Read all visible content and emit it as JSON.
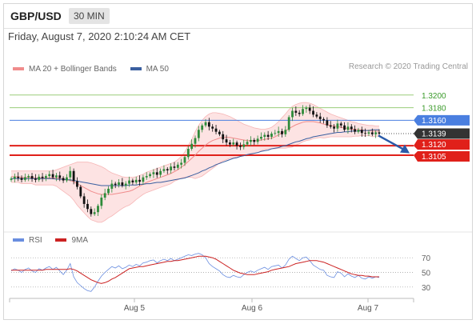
{
  "header": {
    "symbol": "GBP/USD",
    "timeframe": "30 MIN"
  },
  "datetime": "Friday, August 7, 2020 2:10:24 AM CET",
  "copyright": "Research © 2020 Trading Central",
  "colors": {
    "up": "#2e8b3a",
    "down": "#111111",
    "ma20": "#f08c8c",
    "band_fill": "#fde3e3",
    "ma50": "#3a5fa0",
    "rsi": "#6a8ee0",
    "rsi_ma": "#cc2222",
    "resistance": "#9acd7a",
    "pivot": "#4a7fe0",
    "support": "#e0201a",
    "last": "#333333",
    "arrow": "#2a5aa8"
  },
  "chart_data": [
    {
      "type": "candlestick",
      "title": "",
      "legend": [
        {
          "name": "MA 20 + Bollinger Bands",
          "color": "#f08c8c"
        },
        {
          "name": "MA 50",
          "color": "#3a5fa0"
        }
      ],
      "legend_position": "top-left",
      "x_ticks": [
        "Aug 5",
        "Aug 6",
        "Aug 7"
      ],
      "ylim": [
        1.299,
        1.323
      ],
      "last_price": 1.3139,
      "levels": [
        {
          "value": 1.32,
          "label": "1.3200",
          "kind": "resistance"
        },
        {
          "value": 1.318,
          "label": "1.3180",
          "kind": "resistance"
        },
        {
          "value": 1.316,
          "label": "1.3160",
          "kind": "pivot"
        },
        {
          "value": 1.3139,
          "label": "1.3139",
          "kind": "last"
        },
        {
          "value": 1.312,
          "label": "1.3120",
          "kind": "support"
        },
        {
          "value": 1.3105,
          "label": "1.3105",
          "kind": "support"
        }
      ],
      "forecast_arrow": {
        "from": 1.3136,
        "to": 1.3108
      },
      "close": [
        1.3068,
        1.3071,
        1.3069,
        1.3066,
        1.307,
        1.3072,
        1.3068,
        1.3066,
        1.3071,
        1.3069,
        1.3072,
        1.3075,
        1.307,
        1.3073,
        1.3069,
        1.3065,
        1.307,
        1.308,
        1.3064,
        1.3055,
        1.304,
        1.3028,
        1.302,
        1.3012,
        1.3015,
        1.3025,
        1.3038,
        1.3045,
        1.3052,
        1.306,
        1.3058,
        1.3062,
        1.3057,
        1.306,
        1.3065,
        1.3062,
        1.3066,
        1.3063,
        1.307,
        1.3072,
        1.3075,
        1.3078,
        1.3074,
        1.308,
        1.3083,
        1.3081,
        1.3087,
        1.3085,
        1.309,
        1.3093,
        1.3102,
        1.3115,
        1.3123,
        1.3132,
        1.3145,
        1.3152,
        1.3157,
        1.315,
        1.3147,
        1.3142,
        1.3138,
        1.313,
        1.3125,
        1.3122,
        1.3125,
        1.312,
        1.3118,
        1.3122,
        1.3126,
        1.3129,
        1.3126,
        1.3131,
        1.3134,
        1.3137,
        1.3134,
        1.3139,
        1.314,
        1.3143,
        1.3138,
        1.3145,
        1.3165,
        1.3175,
        1.3172,
        1.317,
        1.3178,
        1.318,
        1.3175,
        1.3169,
        1.3166,
        1.3162,
        1.316,
        1.3152,
        1.315,
        1.3147,
        1.3155,
        1.3152,
        1.3145,
        1.315,
        1.3146,
        1.3142,
        1.3145,
        1.314,
        1.3139,
        1.3141,
        1.3138,
        1.3141,
        1.3139
      ],
      "ma20": [
        1.3071,
        1.3071,
        1.3071,
        1.307,
        1.307,
        1.307,
        1.307,
        1.3069,
        1.3069,
        1.3069,
        1.3069,
        1.3069,
        1.3069,
        1.3069,
        1.3068,
        1.3067,
        1.3066,
        1.3065,
        1.3063,
        1.306,
        1.3057,
        1.3054,
        1.3051,
        1.3048,
        1.3046,
        1.3044,
        1.3043,
        1.3043,
        1.3043,
        1.3043,
        1.3044,
        1.3045,
        1.3046,
        1.3047,
        1.3048,
        1.305,
        1.3053,
        1.3056,
        1.3059,
        1.3062,
        1.3064,
        1.3066,
        1.3068,
        1.307,
        1.3072,
        1.3074,
        1.3076,
        1.3079,
        1.3082,
        1.3086,
        1.309,
        1.3095,
        1.31,
        1.3105,
        1.3111,
        1.3116,
        1.3121,
        1.3125,
        1.3128,
        1.313,
        1.3132,
        1.3133,
        1.3133,
        1.3133,
        1.3132,
        1.3131,
        1.313,
        1.3129,
        1.3128,
        1.3128,
        1.3128,
        1.3128,
        1.3129,
        1.313,
        1.3131,
        1.3132,
        1.3134,
        1.3137,
        1.314,
        1.3143,
        1.3147,
        1.315,
        1.3153,
        1.3155,
        1.3157,
        1.3158,
        1.3158,
        1.3158,
        1.3157,
        1.3156,
        1.3154,
        1.3153,
        1.3152,
        1.3151,
        1.315,
        1.3149,
        1.3148,
        1.3147,
        1.3146,
        1.3146,
        1.3145,
        1.3145,
        1.3144,
        1.3144,
        1.3143,
        1.3143,
        1.3143
      ],
      "bb_upper": [
        1.308,
        1.308,
        1.308,
        1.308,
        1.308,
        1.308,
        1.308,
        1.308,
        1.308,
        1.308,
        1.308,
        1.308,
        1.308,
        1.3082,
        1.3084,
        1.3086,
        1.3088,
        1.309,
        1.3092,
        1.3094,
        1.3094,
        1.3094,
        1.3094,
        1.3093,
        1.3091,
        1.3089,
        1.3087,
        1.3084,
        1.308,
        1.3077,
        1.3075,
        1.3073,
        1.3071,
        1.307,
        1.307,
        1.307,
        1.3071,
        1.3073,
        1.3075,
        1.3078,
        1.308,
        1.3082,
        1.3084,
        1.3086,
        1.3088,
        1.309,
        1.3092,
        1.3094,
        1.3098,
        1.3103,
        1.311,
        1.312,
        1.313,
        1.3142,
        1.3152,
        1.316,
        1.3166,
        1.317,
        1.3172,
        1.3172,
        1.3171,
        1.317,
        1.3168,
        1.3166,
        1.3163,
        1.316,
        1.3157,
        1.3154,
        1.3152,
        1.315,
        1.3148,
        1.3147,
        1.3146,
        1.3146,
        1.3147,
        1.3149,
        1.3153,
        1.3158,
        1.3164,
        1.317,
        1.3177,
        1.3182,
        1.3185,
        1.3187,
        1.3188,
        1.3188,
        1.3187,
        1.3185,
        1.3182,
        1.3179,
        1.3176,
        1.3173,
        1.317,
        1.3168,
        1.3166,
        1.3164,
        1.3162,
        1.316,
        1.3158,
        1.3157,
        1.3155,
        1.3154,
        1.3153,
        1.3152,
        1.3152,
        1.3151,
        1.3151
      ],
      "bb_lower": [
        1.3062,
        1.3062,
        1.3062,
        1.306,
        1.306,
        1.306,
        1.306,
        1.3058,
        1.3058,
        1.3058,
        1.3058,
        1.3058,
        1.3058,
        1.3056,
        1.3052,
        1.3048,
        1.3044,
        1.304,
        1.3034,
        1.3026,
        1.302,
        1.3014,
        1.3008,
        1.3003,
        1.3001,
        1.2999,
        1.2999,
        1.3002,
        1.3006,
        1.3009,
        1.3013,
        1.3017,
        1.3021,
        1.3024,
        1.3026,
        1.303,
        1.3035,
        1.3039,
        1.3043,
        1.3046,
        1.3048,
        1.305,
        1.3052,
        1.3054,
        1.3056,
        1.3058,
        1.306,
        1.3064,
        1.3066,
        1.3069,
        1.307,
        1.307,
        1.307,
        1.3068,
        1.307,
        1.3072,
        1.3076,
        1.308,
        1.3084,
        1.3088,
        1.3093,
        1.3096,
        1.3098,
        1.31,
        1.3101,
        1.3102,
        1.3103,
        1.3104,
        1.3104,
        1.3106,
        1.3108,
        1.3109,
        1.3112,
        1.3114,
        1.3115,
        1.3115,
        1.3115,
        1.3116,
        1.3116,
        1.3116,
        1.3117,
        1.3118,
        1.3121,
        1.3123,
        1.3126,
        1.3128,
        1.3129,
        1.3131,
        1.3132,
        1.3133,
        1.3132,
        1.3133,
        1.3134,
        1.3134,
        1.3134,
        1.3134,
        1.3134,
        1.3134,
        1.3134,
        1.3135,
        1.3135,
        1.3136,
        1.3135,
        1.3136,
        1.3134,
        1.3135,
        1.3135
      ],
      "ma50": [
        1.3068,
        1.3068,
        1.3068,
        1.3068,
        1.3068,
        1.3068,
        1.3068,
        1.3068,
        1.3068,
        1.3068,
        1.3068,
        1.3068,
        1.3068,
        1.3067,
        1.3067,
        1.3067,
        1.3066,
        1.3066,
        1.3065,
        1.3064,
        1.3063,
        1.3062,
        1.3061,
        1.306,
        1.3059,
        1.3058,
        1.3057,
        1.3057,
        1.3057,
        1.3057,
        1.3057,
        1.3057,
        1.3057,
        1.3057,
        1.3058,
        1.3058,
        1.3058,
        1.3059,
        1.3059,
        1.306,
        1.306,
        1.3061,
        1.3062,
        1.3062,
        1.3063,
        1.3064,
        1.3065,
        1.3066,
        1.3067,
        1.3068,
        1.3069,
        1.3071,
        1.3073,
        1.3075,
        1.3077,
        1.308,
        1.3082,
        1.3085,
        1.3087,
        1.309,
        1.3092,
        1.3094,
        1.3096,
        1.3098,
        1.31,
        1.3101,
        1.3103,
        1.3104,
        1.3106,
        1.3107,
        1.3108,
        1.3109,
        1.3111,
        1.3112,
        1.3113,
        1.3115,
        1.3116,
        1.3117,
        1.3119,
        1.312,
        1.3122,
        1.3124,
        1.3126,
        1.3127,
        1.3129,
        1.3131,
        1.3132,
        1.3134,
        1.3135,
        1.3136,
        1.3137,
        1.3138,
        1.3139,
        1.314,
        1.3141,
        1.3141,
        1.3142,
        1.3142,
        1.3143,
        1.3143,
        1.3143,
        1.3144,
        1.3144,
        1.3144,
        1.3145,
        1.3145,
        1.3145
      ]
    },
    {
      "type": "line",
      "title": "",
      "legend": [
        {
          "name": "RSI",
          "color": "#6a8ee0"
        },
        {
          "name": "9MA",
          "color": "#cc2222"
        }
      ],
      "y_ticks": [
        70,
        50,
        30
      ],
      "ylim": [
        20,
        80
      ],
      "series": [
        {
          "name": "RSI",
          "values": [
            52,
            55,
            53,
            50,
            54,
            56,
            52,
            50,
            55,
            53,
            56,
            58,
            54,
            57,
            52,
            47,
            53,
            62,
            44,
            36,
            32,
            28,
            25,
            24,
            30,
            38,
            45,
            50,
            54,
            58,
            56,
            59,
            55,
            57,
            60,
            58,
            61,
            59,
            63,
            64,
            66,
            67,
            63,
            66,
            68,
            66,
            69,
            66,
            68,
            70,
            72,
            74,
            73,
            75,
            76,
            74,
            70,
            62,
            58,
            55,
            52,
            47,
            44,
            43,
            46,
            44,
            43,
            47,
            50,
            52,
            50,
            53,
            55,
            57,
            54,
            58,
            59,
            60,
            56,
            60,
            68,
            72,
            69,
            66,
            70,
            71,
            66,
            60,
            57,
            54,
            53,
            46,
            44,
            43,
            51,
            49,
            44,
            48,
            45,
            43,
            46,
            42,
            41,
            44,
            42,
            44,
            43
          ]
        },
        {
          "name": "9MA",
          "values": [
            53,
            53,
            53,
            53,
            53,
            53,
            53,
            53,
            53,
            53,
            54,
            54,
            54,
            54,
            54,
            54,
            54,
            55,
            54,
            52,
            49,
            46,
            43,
            40,
            38,
            36,
            35,
            36,
            38,
            41,
            43,
            46,
            49,
            52,
            55,
            56,
            57,
            58,
            58,
            59,
            60,
            61,
            62,
            63,
            64,
            65,
            65,
            66,
            66,
            67,
            68,
            69,
            70,
            71,
            72,
            72,
            72,
            71,
            70,
            68,
            65,
            62,
            59,
            56,
            53,
            51,
            49,
            48,
            47,
            47,
            47,
            48,
            49,
            50,
            51,
            53,
            54,
            55,
            56,
            57,
            58,
            60,
            62,
            63,
            64,
            65,
            66,
            66,
            66,
            65,
            64,
            62,
            60,
            58,
            56,
            54,
            52,
            50,
            48,
            47,
            46,
            46,
            45,
            45,
            44,
            44,
            44
          ]
        }
      ]
    }
  ]
}
